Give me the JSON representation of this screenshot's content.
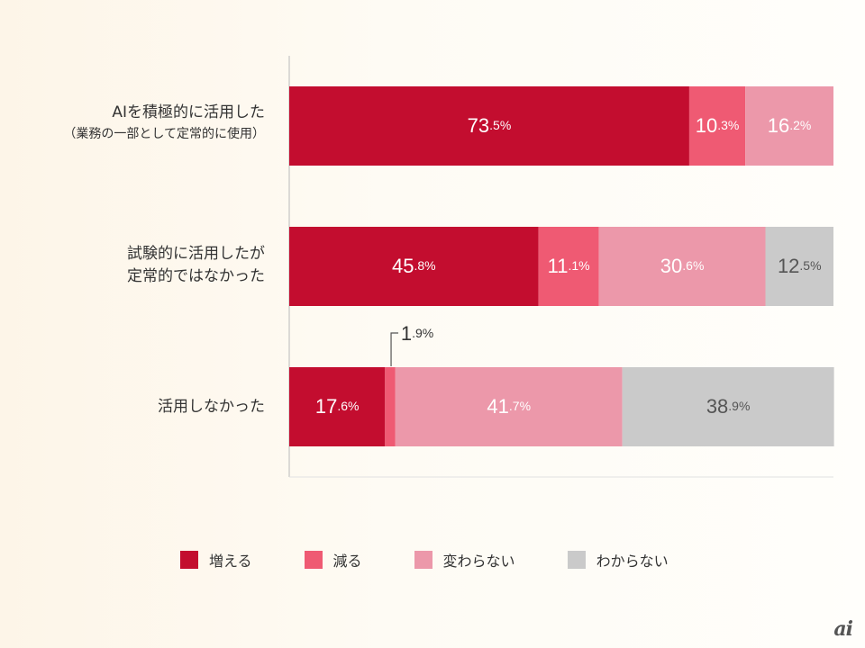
{
  "chart_data": {
    "type": "bar",
    "orientation": "horizontal",
    "stacked": true,
    "percent": true,
    "categories": [
      "AIを積極的に活用した",
      "試験的に活用したが定常的ではなかった",
      "活用しなかった"
    ],
    "category_labels": [
      {
        "main": "AIを積極的に活用した",
        "sub": "（業務の一部として定常的に使用）"
      },
      {
        "main": "試験的に活用したが",
        "sub": "定常的ではなかった"
      },
      {
        "main": "活用しなかった",
        "sub": ""
      }
    ],
    "series": [
      {
        "name": "増える",
        "color": "#c30d2f",
        "values": [
          73.5,
          45.8,
          17.6
        ],
        "labels": [
          "73.5%",
          "45.8%",
          "17.6%"
        ]
      },
      {
        "name": "減る",
        "color": "#ef5a73",
        "values": [
          10.3,
          11.1,
          1.9
        ],
        "labels": [
          "10.3%",
          "11.1%",
          "1.9%"
        ]
      },
      {
        "name": "変わらない",
        "color": "#ec98aa",
        "values": [
          16.2,
          30.6,
          41.7
        ],
        "labels": [
          "16.2%",
          "30.6%",
          "41.7%"
        ]
      },
      {
        "name": "わからない",
        "color": "#cacaca",
        "values": [
          0,
          12.5,
          38.9
        ],
        "labels": [
          "",
          "12.5%",
          "38.9%"
        ]
      }
    ],
    "label_colors": [
      "#ffffff",
      "#ffffff",
      "#ffffff",
      "#555555"
    ],
    "xlim": [
      0,
      100
    ],
    "grid": false,
    "legend_position": "bottom"
  },
  "legend": [
    {
      "label": "増える",
      "color": "#c30d2f"
    },
    {
      "label": "減る",
      "color": "#ef5a73"
    },
    {
      "label": "変わらない",
      "color": "#ec98aa"
    },
    {
      "label": "わからない",
      "color": "#cacaca"
    }
  ],
  "logo_text": "ai"
}
